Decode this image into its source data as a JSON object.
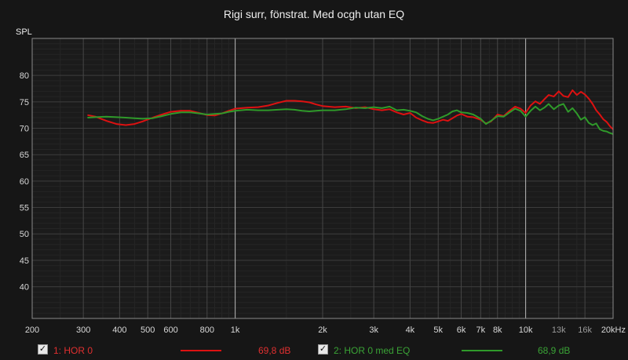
{
  "chart_data": {
    "type": "line",
    "title": "Rigi surr, fönstrat. Med ocgh utan EQ",
    "ylabel": "SPL",
    "xlabel": "",
    "xscale": "log",
    "xlim": [
      200,
      20000
    ],
    "ylim": [
      34,
      87
    ],
    "grid": true,
    "x_ticks": [
      {
        "value": 200,
        "label": "200"
      },
      {
        "value": 300,
        "label": "300"
      },
      {
        "value": 400,
        "label": "400"
      },
      {
        "value": 500,
        "label": "500"
      },
      {
        "value": 600,
        "label": "600"
      },
      {
        "value": 800,
        "label": "800"
      },
      {
        "value": 1000,
        "label": "1k"
      },
      {
        "value": 2000,
        "label": "2k"
      },
      {
        "value": 3000,
        "label": "3k"
      },
      {
        "value": 4000,
        "label": "4k"
      },
      {
        "value": 5000,
        "label": "5k"
      },
      {
        "value": 6000,
        "label": "6k"
      },
      {
        "value": 7000,
        "label": "7k"
      },
      {
        "value": 8000,
        "label": "8k"
      },
      {
        "value": 10000,
        "label": "10k"
      },
      {
        "value": 13000,
        "label": "13k"
      },
      {
        "value": 16000,
        "label": "16k"
      },
      {
        "value": 20000,
        "label": "20kHz"
      }
    ],
    "y_ticks": [
      40,
      45,
      50,
      55,
      60,
      65,
      70,
      75,
      80
    ],
    "series": [
      {
        "name": "1: HOR  0",
        "color": "#dd1111",
        "value_label": "69,8 dB",
        "checked": true,
        "points": [
          [
            310,
            72.5
          ],
          [
            330,
            72.2
          ],
          [
            360,
            71.4
          ],
          [
            390,
            70.8
          ],
          [
            420,
            70.6
          ],
          [
            450,
            70.8
          ],
          [
            480,
            71.3
          ],
          [
            520,
            72.0
          ],
          [
            560,
            72.6
          ],
          [
            600,
            73.1
          ],
          [
            650,
            73.3
          ],
          [
            700,
            73.3
          ],
          [
            750,
            72.9
          ],
          [
            800,
            72.5
          ],
          [
            850,
            72.4
          ],
          [
            900,
            72.8
          ],
          [
            950,
            73.3
          ],
          [
            1000,
            73.7
          ],
          [
            1100,
            73.9
          ],
          [
            1200,
            74.0
          ],
          [
            1300,
            74.3
          ],
          [
            1400,
            74.8
          ],
          [
            1500,
            75.2
          ],
          [
            1600,
            75.2
          ],
          [
            1700,
            75.1
          ],
          [
            1800,
            74.9
          ],
          [
            1900,
            74.5
          ],
          [
            2000,
            74.2
          ],
          [
            2200,
            74.0
          ],
          [
            2400,
            74.1
          ],
          [
            2600,
            73.8
          ],
          [
            2800,
            74.0
          ],
          [
            3000,
            73.6
          ],
          [
            3200,
            73.4
          ],
          [
            3400,
            73.6
          ],
          [
            3600,
            73.0
          ],
          [
            3800,
            72.6
          ],
          [
            4000,
            72.9
          ],
          [
            4200,
            72.0
          ],
          [
            4400,
            71.5
          ],
          [
            4600,
            71.1
          ],
          [
            4800,
            71.0
          ],
          [
            5000,
            71.3
          ],
          [
            5200,
            71.6
          ],
          [
            5400,
            71.4
          ],
          [
            5600,
            71.9
          ],
          [
            5800,
            72.4
          ],
          [
            6000,
            72.7
          ],
          [
            6300,
            72.2
          ],
          [
            6600,
            72.1
          ],
          [
            7000,
            71.6
          ],
          [
            7300,
            70.9
          ],
          [
            7600,
            71.3
          ],
          [
            8000,
            72.6
          ],
          [
            8400,
            72.3
          ],
          [
            8800,
            73.3
          ],
          [
            9200,
            74.1
          ],
          [
            9600,
            73.7
          ],
          [
            10000,
            72.9
          ],
          [
            10400,
            74.3
          ],
          [
            10800,
            75.1
          ],
          [
            11200,
            74.6
          ],
          [
            11600,
            75.5
          ],
          [
            12000,
            76.3
          ],
          [
            12500,
            76.0
          ],
          [
            13000,
            77.0
          ],
          [
            13500,
            76.1
          ],
          [
            14000,
            75.9
          ],
          [
            14500,
            77.2
          ],
          [
            15000,
            76.3
          ],
          [
            15500,
            76.9
          ],
          [
            16000,
            76.4
          ],
          [
            16500,
            75.6
          ],
          [
            17000,
            74.6
          ],
          [
            17500,
            73.4
          ],
          [
            18000,
            72.6
          ],
          [
            18500,
            71.7
          ],
          [
            19000,
            71.2
          ],
          [
            19500,
            70.4
          ],
          [
            20000,
            69.8
          ]
        ]
      },
      {
        "name": "2: HOR 0 med EQ",
        "color": "#2f9a2a",
        "value_label": "68,9 dB",
        "checked": true,
        "points": [
          [
            310,
            72.0
          ],
          [
            330,
            72.1
          ],
          [
            360,
            72.2
          ],
          [
            390,
            72.1
          ],
          [
            420,
            72.0
          ],
          [
            450,
            71.9
          ],
          [
            480,
            71.8
          ],
          [
            520,
            71.9
          ],
          [
            560,
            72.3
          ],
          [
            600,
            72.7
          ],
          [
            650,
            73.0
          ],
          [
            700,
            73.0
          ],
          [
            750,
            72.8
          ],
          [
            800,
            72.6
          ],
          [
            850,
            72.7
          ],
          [
            900,
            72.8
          ],
          [
            950,
            73.1
          ],
          [
            1000,
            73.3
          ],
          [
            1100,
            73.5
          ],
          [
            1200,
            73.4
          ],
          [
            1300,
            73.4
          ],
          [
            1400,
            73.5
          ],
          [
            1500,
            73.6
          ],
          [
            1600,
            73.5
          ],
          [
            1700,
            73.3
          ],
          [
            1800,
            73.2
          ],
          [
            1900,
            73.3
          ],
          [
            2000,
            73.4
          ],
          [
            2200,
            73.4
          ],
          [
            2400,
            73.6
          ],
          [
            2600,
            73.9
          ],
          [
            2800,
            73.8
          ],
          [
            3000,
            74.0
          ],
          [
            3200,
            73.8
          ],
          [
            3400,
            74.1
          ],
          [
            3600,
            73.4
          ],
          [
            3800,
            73.5
          ],
          [
            4000,
            73.3
          ],
          [
            4200,
            73.0
          ],
          [
            4400,
            72.3
          ],
          [
            4600,
            71.8
          ],
          [
            4800,
            71.5
          ],
          [
            5000,
            71.8
          ],
          [
            5200,
            72.2
          ],
          [
            5400,
            72.6
          ],
          [
            5600,
            73.2
          ],
          [
            5800,
            73.4
          ],
          [
            6000,
            73.0
          ],
          [
            6300,
            72.9
          ],
          [
            6600,
            72.6
          ],
          [
            7000,
            71.8
          ],
          [
            7300,
            70.8
          ],
          [
            7600,
            71.4
          ],
          [
            8000,
            72.3
          ],
          [
            8400,
            72.2
          ],
          [
            8800,
            73.0
          ],
          [
            9200,
            73.7
          ],
          [
            9600,
            73.3
          ],
          [
            10000,
            72.2
          ],
          [
            10400,
            73.3
          ],
          [
            10800,
            74.1
          ],
          [
            11200,
            73.4
          ],
          [
            11600,
            73.9
          ],
          [
            12000,
            74.6
          ],
          [
            12500,
            73.6
          ],
          [
            13000,
            74.3
          ],
          [
            13500,
            74.6
          ],
          [
            14000,
            73.1
          ],
          [
            14500,
            73.8
          ],
          [
            15000,
            72.8
          ],
          [
            15500,
            71.6
          ],
          [
            16000,
            72.1
          ],
          [
            16500,
            71.0
          ],
          [
            17000,
            70.6
          ],
          [
            17500,
            70.9
          ],
          [
            18000,
            69.8
          ],
          [
            18500,
            69.5
          ],
          [
            19000,
            69.4
          ],
          [
            19500,
            69.1
          ],
          [
            20000,
            68.9
          ]
        ]
      }
    ]
  }
}
